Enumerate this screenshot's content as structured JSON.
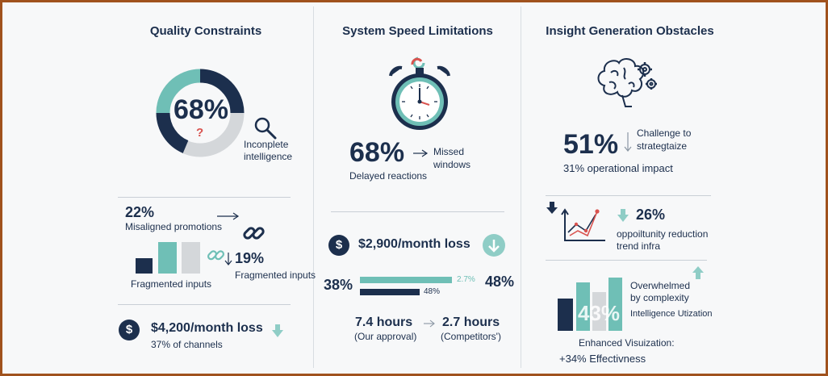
{
  "colors": {
    "navy": "#1c2f4d",
    "teal": "#6fbfb6",
    "gray": "#d4d7da",
    "red": "#d9534f",
    "frame": "#a0521d"
  },
  "quality": {
    "title": "Quality Constraints",
    "donut_value": "68%",
    "donut_mark": "?",
    "inc_label_1": "Inconplete",
    "inc_label_2": "intelligence",
    "misaligned_value": "22%",
    "misaligned_label": "Misaligned promotions",
    "fragmented_value": "19%",
    "fragmented_label_left": "Fragmented inputs",
    "fragmented_label_right": "Fragmented inputs",
    "loss_value": "$4,200/month loss",
    "loss_sub": "37% of channels",
    "dollar_sign": "$"
  },
  "speed": {
    "title": "System Speed Limitations",
    "delayed_value": "68%",
    "missed_label_1": "Missed",
    "missed_label_2": "windows",
    "delayed_label": "Delayed reactions",
    "loss_value": "$2,900/month loss",
    "dollar_sign": "$",
    "bar_left_value": "38%",
    "bar_top_label": "2.7%",
    "bar_bottom_label": "48%",
    "bar_right_value": "48%",
    "hours_left": "7.4 hours",
    "hours_left_sub": "(Our approval)",
    "hours_right": "2.7 hours",
    "hours_right_sub": "(Competitors')"
  },
  "insight": {
    "title": "Insight Generation Obstacles",
    "challenge_value": "51%",
    "challenge_label_1": "Challenge to",
    "challenge_label_2": "strategtaize",
    "operational": "31% operational impact",
    "opportunity_value": "26%",
    "opportunity_label_1": "oppoiltunity reduction",
    "opportunity_label_2": "trend infra",
    "overwhelmed_1": "Overwhelmed",
    "overwhelmed_2": "by complexity",
    "utilization": "Intelligence Utization",
    "bar_overlay_value": "43%",
    "enhanced_label": "Enhanced Visuization:",
    "enhanced_value": "+34% Effectivness"
  }
}
